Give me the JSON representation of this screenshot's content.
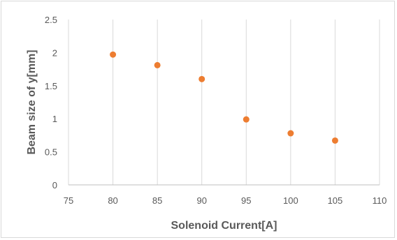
{
  "chart_data": {
    "type": "scatter",
    "xlabel": "Solenoid Current[A]",
    "ylabel": "Beam size of y[mm]",
    "xlim": [
      75,
      110
    ],
    "ylim": [
      0,
      2.5
    ],
    "x_ticks": [
      75,
      80,
      85,
      90,
      95,
      100,
      105,
      110
    ],
    "y_ticks": [
      0,
      0.5,
      1,
      1.5,
      2,
      2.5
    ],
    "grid": {
      "vertical": true,
      "horizontal": false
    },
    "legend": "none",
    "colors": {
      "marker": "#ED7D31"
    },
    "series": [
      {
        "x": [
          80,
          85,
          90,
          95,
          100,
          105
        ],
        "y": [
          1.97,
          1.81,
          1.6,
          0.99,
          0.78,
          0.67
        ]
      }
    ]
  }
}
